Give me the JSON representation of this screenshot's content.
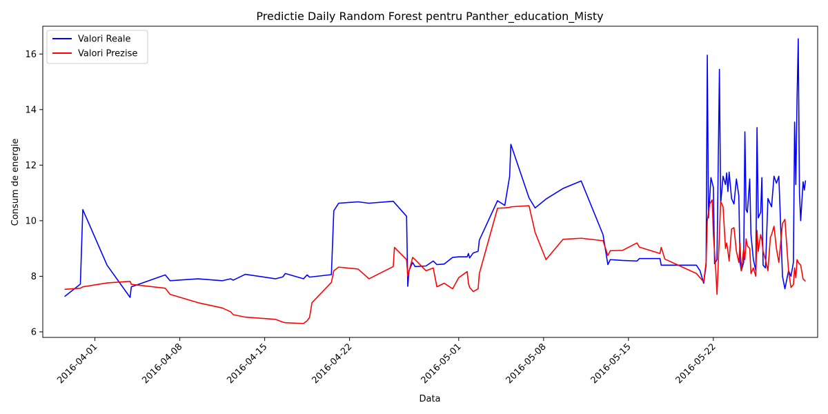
{
  "chart_data": {
    "type": "line",
    "title": "Predictie Daily Random Forest pentru Panther_education_Misty",
    "xlabel": "Data",
    "ylabel": "Consum de energie",
    "x_ticks": [
      {
        "label": "2016-04-01",
        "day": 1
      },
      {
        "label": "2016-04-08",
        "day": 8
      },
      {
        "label": "2016-04-15",
        "day": 15
      },
      {
        "label": "2016-04-22",
        "day": 22
      },
      {
        "label": "2016-05-01",
        "day": 31
      },
      {
        "label": "2016-05-08",
        "day": 38
      },
      {
        "label": "2016-05-15",
        "day": 45
      },
      {
        "label": "2016-05-22",
        "day": 52
      }
    ],
    "y_ticks": [
      6,
      8,
      10,
      12,
      14,
      16
    ],
    "xlim": [
      -3.3,
      60.6
    ],
    "ylim": [
      5.8,
      17.0
    ],
    "legend": {
      "position": "top-left",
      "entries": [
        "Valori Reale",
        "Valori Prezise"
      ]
    },
    "grid": false,
    "series": [
      {
        "name": "Valori Reale",
        "color": "#0000ff",
        "points": [
          [
            -1.5,
            7.27
          ],
          [
            -0.2,
            7.72
          ],
          [
            0,
            10.4
          ],
          [
            2,
            8.4
          ],
          [
            3.9,
            7.24
          ],
          [
            4,
            7.62
          ],
          [
            6.8,
            8.05
          ],
          [
            7.2,
            7.84
          ],
          [
            9.5,
            7.91
          ],
          [
            11.5,
            7.84
          ],
          [
            12.2,
            7.91
          ],
          [
            12.4,
            7.86
          ],
          [
            13.4,
            8.07
          ],
          [
            15.9,
            7.91
          ],
          [
            16.5,
            7.98
          ],
          [
            16.7,
            8.1
          ],
          [
            18.2,
            7.91
          ],
          [
            18.5,
            8.05
          ],
          [
            18.7,
            7.97
          ],
          [
            20.5,
            8.06
          ],
          [
            20.7,
            10.36
          ],
          [
            21.1,
            10.63
          ],
          [
            22.7,
            10.68
          ],
          [
            23.6,
            10.63
          ],
          [
            25.6,
            10.7
          ],
          [
            26.7,
            10.16
          ],
          [
            26.8,
            7.64
          ],
          [
            26.9,
            8.2
          ],
          [
            27.2,
            8.5
          ],
          [
            27.4,
            8.35
          ],
          [
            28.3,
            8.37
          ],
          [
            28.9,
            8.55
          ],
          [
            29.2,
            8.42
          ],
          [
            29.8,
            8.44
          ],
          [
            30.5,
            8.68
          ],
          [
            31,
            8.7
          ],
          [
            31.7,
            8.7
          ],
          [
            31.8,
            8.82
          ],
          [
            31.9,
            8.66
          ],
          [
            32.2,
            8.84
          ],
          [
            32.6,
            8.9
          ],
          [
            32.7,
            9.3
          ],
          [
            34.2,
            10.72
          ],
          [
            34.8,
            10.55
          ],
          [
            35.2,
            11.6
          ],
          [
            35.3,
            12.75
          ],
          [
            36.8,
            10.82
          ],
          [
            37.3,
            10.46
          ],
          [
            38.2,
            10.78
          ],
          [
            39.6,
            11.16
          ],
          [
            41.1,
            11.43
          ],
          [
            42.9,
            9.5
          ],
          [
            43.3,
            8.42
          ],
          [
            43.5,
            8.6
          ],
          [
            44.5,
            8.57
          ],
          [
            45.7,
            8.55
          ],
          [
            45.9,
            8.64
          ],
          [
            47.6,
            8.64
          ],
          [
            47.7,
            8.4
          ],
          [
            50.6,
            8.4
          ],
          [
            50.9,
            8.2
          ],
          [
            51.2,
            7.75
          ],
          [
            51.4,
            8.4
          ],
          [
            51.5,
            15.96
          ],
          [
            51.6,
            10.1
          ],
          [
            51.8,
            11.55
          ],
          [
            52.0,
            11.2
          ],
          [
            52.1,
            8.45
          ],
          [
            52.3,
            8.6
          ],
          [
            52.5,
            15.45
          ],
          [
            52.6,
            10.6
          ],
          [
            52.8,
            11.6
          ],
          [
            53.0,
            11.3
          ],
          [
            53.1,
            11.72
          ],
          [
            53.2,
            11.05
          ],
          [
            53.3,
            11.75
          ],
          [
            53.5,
            10.8
          ],
          [
            53.7,
            10.6
          ],
          [
            53.9,
            11.5
          ],
          [
            54.1,
            10.9
          ],
          [
            54.2,
            8.5
          ],
          [
            54.3,
            8.2
          ],
          [
            54.5,
            8.5
          ],
          [
            54.6,
            13.2
          ],
          [
            54.7,
            10.4
          ],
          [
            54.8,
            10.3
          ],
          [
            55.0,
            11.5
          ],
          [
            55.1,
            9.5
          ],
          [
            55.3,
            8.6
          ],
          [
            55.5,
            8.2
          ],
          [
            55.6,
            13.35
          ],
          [
            55.7,
            10.1
          ],
          [
            55.9,
            10.3
          ],
          [
            56.0,
            11.55
          ],
          [
            56.1,
            8.4
          ],
          [
            56.3,
            8.3
          ],
          [
            56.5,
            10.8
          ],
          [
            56.7,
            10.6
          ],
          [
            56.8,
            10.5
          ],
          [
            57.0,
            11.6
          ],
          [
            57.2,
            11.35
          ],
          [
            57.4,
            11.6
          ],
          [
            57.7,
            8.0
          ],
          [
            57.9,
            7.55
          ],
          [
            58.2,
            8.2
          ],
          [
            58.4,
            8.0
          ],
          [
            58.6,
            8.5
          ],
          [
            58.7,
            13.55
          ],
          [
            58.8,
            11.3
          ],
          [
            58.9,
            14.35
          ],
          [
            59.0,
            16.55
          ],
          [
            59.1,
            11.0
          ],
          [
            59.2,
            10.0
          ],
          [
            59.4,
            11.4
          ],
          [
            59.5,
            11.1
          ],
          [
            59.6,
            11.45
          ]
        ]
      },
      {
        "name": "Valori Prezise",
        "color": "#ff0000",
        "points": [
          [
            -1.5,
            7.53
          ],
          [
            -0.2,
            7.57
          ],
          [
            0,
            7.62
          ],
          [
            2,
            7.76
          ],
          [
            3.9,
            7.82
          ],
          [
            4,
            7.71
          ],
          [
            6.8,
            7.57
          ],
          [
            7.2,
            7.35
          ],
          [
            9.5,
            7.05
          ],
          [
            11.5,
            6.86
          ],
          [
            12.2,
            6.72
          ],
          [
            12.4,
            6.62
          ],
          [
            13.4,
            6.53
          ],
          [
            15.9,
            6.45
          ],
          [
            16.5,
            6.35
          ],
          [
            16.7,
            6.33
          ],
          [
            18.2,
            6.3
          ],
          [
            18.5,
            6.4
          ],
          [
            18.7,
            6.52
          ],
          [
            18.9,
            7.05
          ],
          [
            20.5,
            7.78
          ],
          [
            20.7,
            8.2
          ],
          [
            21.1,
            8.33
          ],
          [
            22.7,
            8.26
          ],
          [
            23.6,
            7.91
          ],
          [
            25.6,
            8.35
          ],
          [
            25.7,
            9.04
          ],
          [
            26.7,
            8.6
          ],
          [
            26.8,
            8.0
          ],
          [
            27.2,
            8.68
          ],
          [
            27.4,
            8.6
          ],
          [
            28.3,
            8.2
          ],
          [
            28.9,
            8.3
          ],
          [
            29.2,
            7.62
          ],
          [
            29.8,
            7.75
          ],
          [
            30.5,
            7.55
          ],
          [
            31,
            7.95
          ],
          [
            31.7,
            8.17
          ],
          [
            31.8,
            7.75
          ],
          [
            31.9,
            7.6
          ],
          [
            32.2,
            7.45
          ],
          [
            32.6,
            7.55
          ],
          [
            32.7,
            8.1
          ],
          [
            34.2,
            10.45
          ],
          [
            34.8,
            10.46
          ],
          [
            35.2,
            10.48
          ],
          [
            35.3,
            10.5
          ],
          [
            36.8,
            10.54
          ],
          [
            37.3,
            9.58
          ],
          [
            38.2,
            8.6
          ],
          [
            39.6,
            9.33
          ],
          [
            41.1,
            9.37
          ],
          [
            42.9,
            9.28
          ],
          [
            43.3,
            8.75
          ],
          [
            43.5,
            8.92
          ],
          [
            44.5,
            8.93
          ],
          [
            45.7,
            9.2
          ],
          [
            45.9,
            9.05
          ],
          [
            47.6,
            8.82
          ],
          [
            47.7,
            9.04
          ],
          [
            48.0,
            8.62
          ],
          [
            50.6,
            8.1
          ],
          [
            50.9,
            7.95
          ],
          [
            51.2,
            7.8
          ],
          [
            51.4,
            8.5
          ],
          [
            51.5,
            10.0
          ],
          [
            51.7,
            10.6
          ],
          [
            51.9,
            10.75
          ],
          [
            52.0,
            9.5
          ],
          [
            52.2,
            8.2
          ],
          [
            52.3,
            7.35
          ],
          [
            52.5,
            9.5
          ],
          [
            52.6,
            10.7
          ],
          [
            52.8,
            10.5
          ],
          [
            53.0,
            9.0
          ],
          [
            53.1,
            9.2
          ],
          [
            53.2,
            8.9
          ],
          [
            53.3,
            8.55
          ],
          [
            53.5,
            9.7
          ],
          [
            53.7,
            9.75
          ],
          [
            53.9,
            8.9
          ],
          [
            54.1,
            8.5
          ],
          [
            54.2,
            9.2
          ],
          [
            54.3,
            8.2
          ],
          [
            54.5,
            9.0
          ],
          [
            54.6,
            8.6
          ],
          [
            54.7,
            9.35
          ],
          [
            54.8,
            9.1
          ],
          [
            55.0,
            9.0
          ],
          [
            55.1,
            8.1
          ],
          [
            55.3,
            8.3
          ],
          [
            55.5,
            8.0
          ],
          [
            55.6,
            9.65
          ],
          [
            55.7,
            8.9
          ],
          [
            55.9,
            9.5
          ],
          [
            56.0,
            9.3
          ],
          [
            56.1,
            8.9
          ],
          [
            56.3,
            8.6
          ],
          [
            56.5,
            8.2
          ],
          [
            56.7,
            9.4
          ],
          [
            56.8,
            9.5
          ],
          [
            57.0,
            9.8
          ],
          [
            57.2,
            9.0
          ],
          [
            57.4,
            8.5
          ],
          [
            57.7,
            9.9
          ],
          [
            57.9,
            10.05
          ],
          [
            58.2,
            8.2
          ],
          [
            58.4,
            7.6
          ],
          [
            58.6,
            7.7
          ],
          [
            58.7,
            8.3
          ],
          [
            58.8,
            7.95
          ],
          [
            58.9,
            8.6
          ],
          [
            59.0,
            8.5
          ],
          [
            59.2,
            8.4
          ],
          [
            59.4,
            7.9
          ],
          [
            59.6,
            7.82
          ]
        ]
      }
    ]
  }
}
